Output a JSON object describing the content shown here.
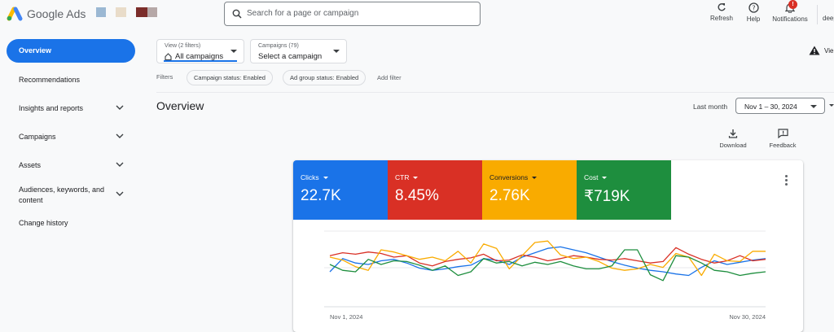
{
  "header": {
    "brand": "Google Ads",
    "search_placeholder": "Search for a page or campaign",
    "refresh_label": "Refresh",
    "help_label": "Help",
    "notifications_label": "Notifications",
    "notifications_count": "!",
    "user_label": "deep",
    "swatches": [
      "#9bb8d3",
      "#e9dcc9",
      "#7b2d2a",
      "#b6a8a7"
    ]
  },
  "sidebar": {
    "items": [
      {
        "label": "Overview",
        "active": true
      },
      {
        "label": "Recommendations"
      },
      {
        "label": "Insights and reports"
      },
      {
        "label": "Campaigns"
      },
      {
        "label": "Assets"
      },
      {
        "label": "Audiences, keywords, and content"
      },
      {
        "label": "Change history"
      }
    ]
  },
  "view_selector": {
    "caption": "View (2 filters)",
    "value": "All campaigns"
  },
  "campaign_selector": {
    "caption": "Campaigns (79)",
    "value": "Select a campaign"
  },
  "filters": {
    "label": "Filters",
    "chips": [
      "Campaign status: Enabled",
      "Ad group status: Enabled"
    ],
    "add_label": "Add filter"
  },
  "page": {
    "title": "Overview",
    "range_label": "Last month",
    "range_value": "Nov 1 – 30, 2024",
    "download_label": "Download",
    "feedback_label": "Feedback",
    "alert_label": "Vie"
  },
  "metrics": [
    {
      "label": "Clicks",
      "value": "22.7K",
      "color": "#1a73e8"
    },
    {
      "label": "CTR",
      "value": "8.45%",
      "color": "#d93025"
    },
    {
      "label": "Conversions",
      "value": "2.76K",
      "color": "#f9ab00"
    },
    {
      "label": "Cost",
      "value": "₹719K",
      "color": "#1e8e3e"
    }
  ],
  "chart_data": {
    "type": "line",
    "x_start_label": "Nov 1, 2024",
    "x_end_label": "Nov 30, 2024",
    "ylim": [
      0,
      100
    ],
    "series": [
      {
        "color": "#1a73e8",
        "values": [
          40,
          58,
          52,
          50,
          55,
          57,
          52,
          45,
          42,
          44,
          47,
          49,
          58,
          56,
          50,
          60,
          66,
          72,
          74,
          70,
          66,
          60,
          54,
          49,
          45,
          42,
          40,
          37,
          35,
          46,
          55,
          50,
          53,
          56,
          58
        ]
      },
      {
        "color": "#d93025",
        "values": [
          62,
          66,
          64,
          67,
          65,
          60,
          62,
          52,
          48,
          54,
          57,
          59,
          64,
          55,
          56,
          63,
          60,
          55,
          58,
          62,
          60,
          57,
          56,
          58,
          55,
          52,
          54,
          73,
          64,
          57,
          52,
          55,
          62,
          55,
          57
        ]
      },
      {
        "color": "#f9ab00",
        "values": [
          60,
          56,
          47,
          42,
          70,
          67,
          62,
          57,
          60,
          55,
          68,
          52,
          78,
          72,
          44,
          62,
          80,
          82,
          63,
          58,
          60,
          54,
          45,
          42,
          44,
          50,
          46,
          65,
          60,
          35,
          64,
          55,
          54,
          68,
          68
        ]
      },
      {
        "color": "#1e8e3e",
        "values": [
          50,
          42,
          40,
          57,
          50,
          55,
          54,
          49,
          42,
          48,
          35,
          40,
          58,
          52,
          54,
          48,
          53,
          50,
          54,
          48,
          44,
          44,
          48,
          70,
          70,
          36,
          28,
          62,
          60,
          52,
          42,
          40,
          35,
          38,
          40
        ]
      }
    ]
  }
}
